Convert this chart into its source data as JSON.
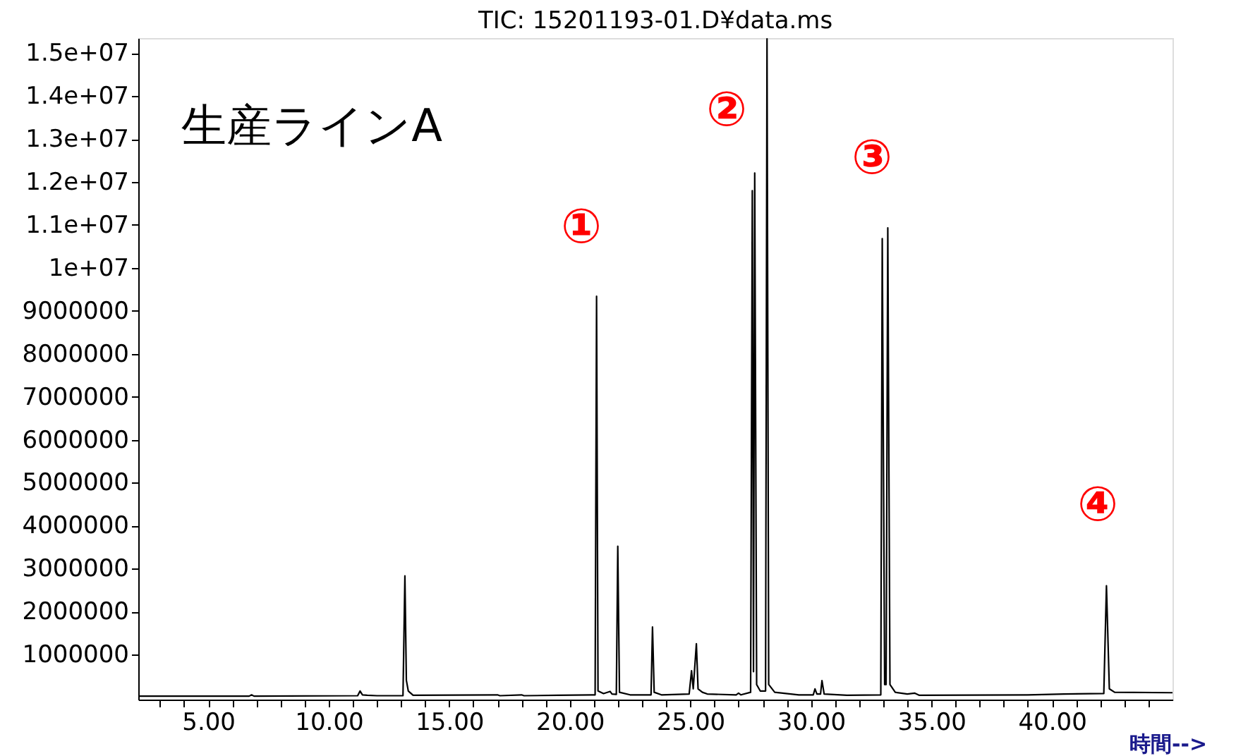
{
  "chart_data": {
    "type": "line",
    "title": "TIC: 15201193-01.D¥data.ms",
    "xlabel": "時間-->",
    "annotations": [
      "生産ラインA",
      "①",
      "②",
      "③",
      "④"
    ],
    "x": [
      2.1,
      6.7,
      6.8,
      6.9,
      11.2,
      11.3,
      11.4,
      11.6,
      12.0,
      13.08,
      13.16,
      13.22,
      13.3,
      13.5,
      17.0,
      17.1,
      18.0,
      18.1,
      19.5,
      20.9,
      21.05,
      21.11,
      21.17,
      21.4,
      21.67,
      21.75,
      21.93,
      21.99,
      22.06,
      22.5,
      23.37,
      23.43,
      23.5,
      23.8,
      24.95,
      25.05,
      25.12,
      25.25,
      25.32,
      25.5,
      25.7,
      26.9,
      27.0,
      27.1,
      27.5,
      27.57,
      27.62,
      27.67,
      27.75,
      27.9,
      28.12,
      28.18,
      28.25,
      28.5,
      29.5,
      30.1,
      30.17,
      30.25,
      30.4,
      30.46,
      30.55,
      31.5,
      32.9,
      32.96,
      33.06,
      33.12,
      33.19,
      33.28,
      33.5,
      34.0,
      34.3,
      34.5,
      39.0,
      40.5,
      42.15,
      42.26,
      42.38,
      42.6,
      45.0
    ],
    "series": [
      {
        "color": "#000000",
        "values": [
          30000,
          30000,
          60000,
          30000,
          40000,
          150000,
          60000,
          50000,
          40000,
          40000,
          2830000,
          400000,
          150000,
          50000,
          60000,
          40000,
          60000,
          40000,
          50000,
          60000,
          60000,
          9340000,
          150000,
          90000,
          140000,
          80000,
          70000,
          3520000,
          120000,
          60000,
          60000,
          1640000,
          120000,
          60000,
          80000,
          620000,
          200000,
          1250000,
          200000,
          120000,
          80000,
          60000,
          100000,
          60000,
          120000,
          11800000,
          600000,
          12210000,
          300000,
          150000,
          150000,
          15330000,
          300000,
          120000,
          60000,
          60000,
          200000,
          80000,
          80000,
          390000,
          80000,
          50000,
          60000,
          10680000,
          300000,
          300000,
          10930000,
          300000,
          120000,
          80000,
          100000,
          50000,
          60000,
          80000,
          90000,
          2600000,
          200000,
          120000,
          110000
        ]
      }
    ],
    "xlim": [
      2.1,
      45.0
    ],
    "ylim": [
      -50000,
      15350000
    ],
    "xticks": [
      {
        "value": 3,
        "label": null
      },
      {
        "value": 4,
        "label": null
      },
      {
        "value": 5,
        "label": "5.00"
      },
      {
        "value": 6,
        "label": null
      },
      {
        "value": 7,
        "label": null
      },
      {
        "value": 8,
        "label": null
      },
      {
        "value": 9,
        "label": null
      },
      {
        "value": 10,
        "label": "10.00"
      },
      {
        "value": 11,
        "label": null
      },
      {
        "value": 12,
        "label": null
      },
      {
        "value": 13,
        "label": null
      },
      {
        "value": 14,
        "label": null
      },
      {
        "value": 15,
        "label": "15.00"
      },
      {
        "value": 16,
        "label": null
      },
      {
        "value": 17,
        "label": null
      },
      {
        "value": 18,
        "label": null
      },
      {
        "value": 19,
        "label": null
      },
      {
        "value": 20,
        "label": "20.00"
      },
      {
        "value": 21,
        "label": null
      },
      {
        "value": 22,
        "label": null
      },
      {
        "value": 23,
        "label": null
      },
      {
        "value": 24,
        "label": null
      },
      {
        "value": 25,
        "label": "25.00"
      },
      {
        "value": 26,
        "label": null
      },
      {
        "value": 27,
        "label": null
      },
      {
        "value": 28,
        "label": null
      },
      {
        "value": 29,
        "label": null
      },
      {
        "value": 30,
        "label": "30.00"
      },
      {
        "value": 31,
        "label": null
      },
      {
        "value": 32,
        "label": null
      },
      {
        "value": 33,
        "label": null
      },
      {
        "value": 34,
        "label": null
      },
      {
        "value": 35,
        "label": "35.00"
      },
      {
        "value": 36,
        "label": null
      },
      {
        "value": 37,
        "label": null
      },
      {
        "value": 38,
        "label": null
      },
      {
        "value": 39,
        "label": null
      },
      {
        "value": 40,
        "label": "40.00"
      },
      {
        "value": 41,
        "label": null
      },
      {
        "value": 42,
        "label": null
      },
      {
        "value": 43,
        "label": null
      },
      {
        "value": 44,
        "label": null
      }
    ],
    "yticks": [
      1000000,
      2000000,
      3000000,
      4000000,
      5000000,
      6000000,
      7000000,
      8000000,
      9000000,
      {
        "value": 10000000,
        "label": "1e+07"
      },
      {
        "value": 11000000,
        "label": "1.1e+07"
      },
      {
        "value": 12000000,
        "label": "1.2e+07"
      },
      {
        "value": 13000000,
        "label": "1.3e+07"
      },
      {
        "value": 14000000,
        "label": "1.4e+07"
      },
      {
        "value": 15000000,
        "label": "1.5e+07"
      }
    ],
    "grid": false
  }
}
